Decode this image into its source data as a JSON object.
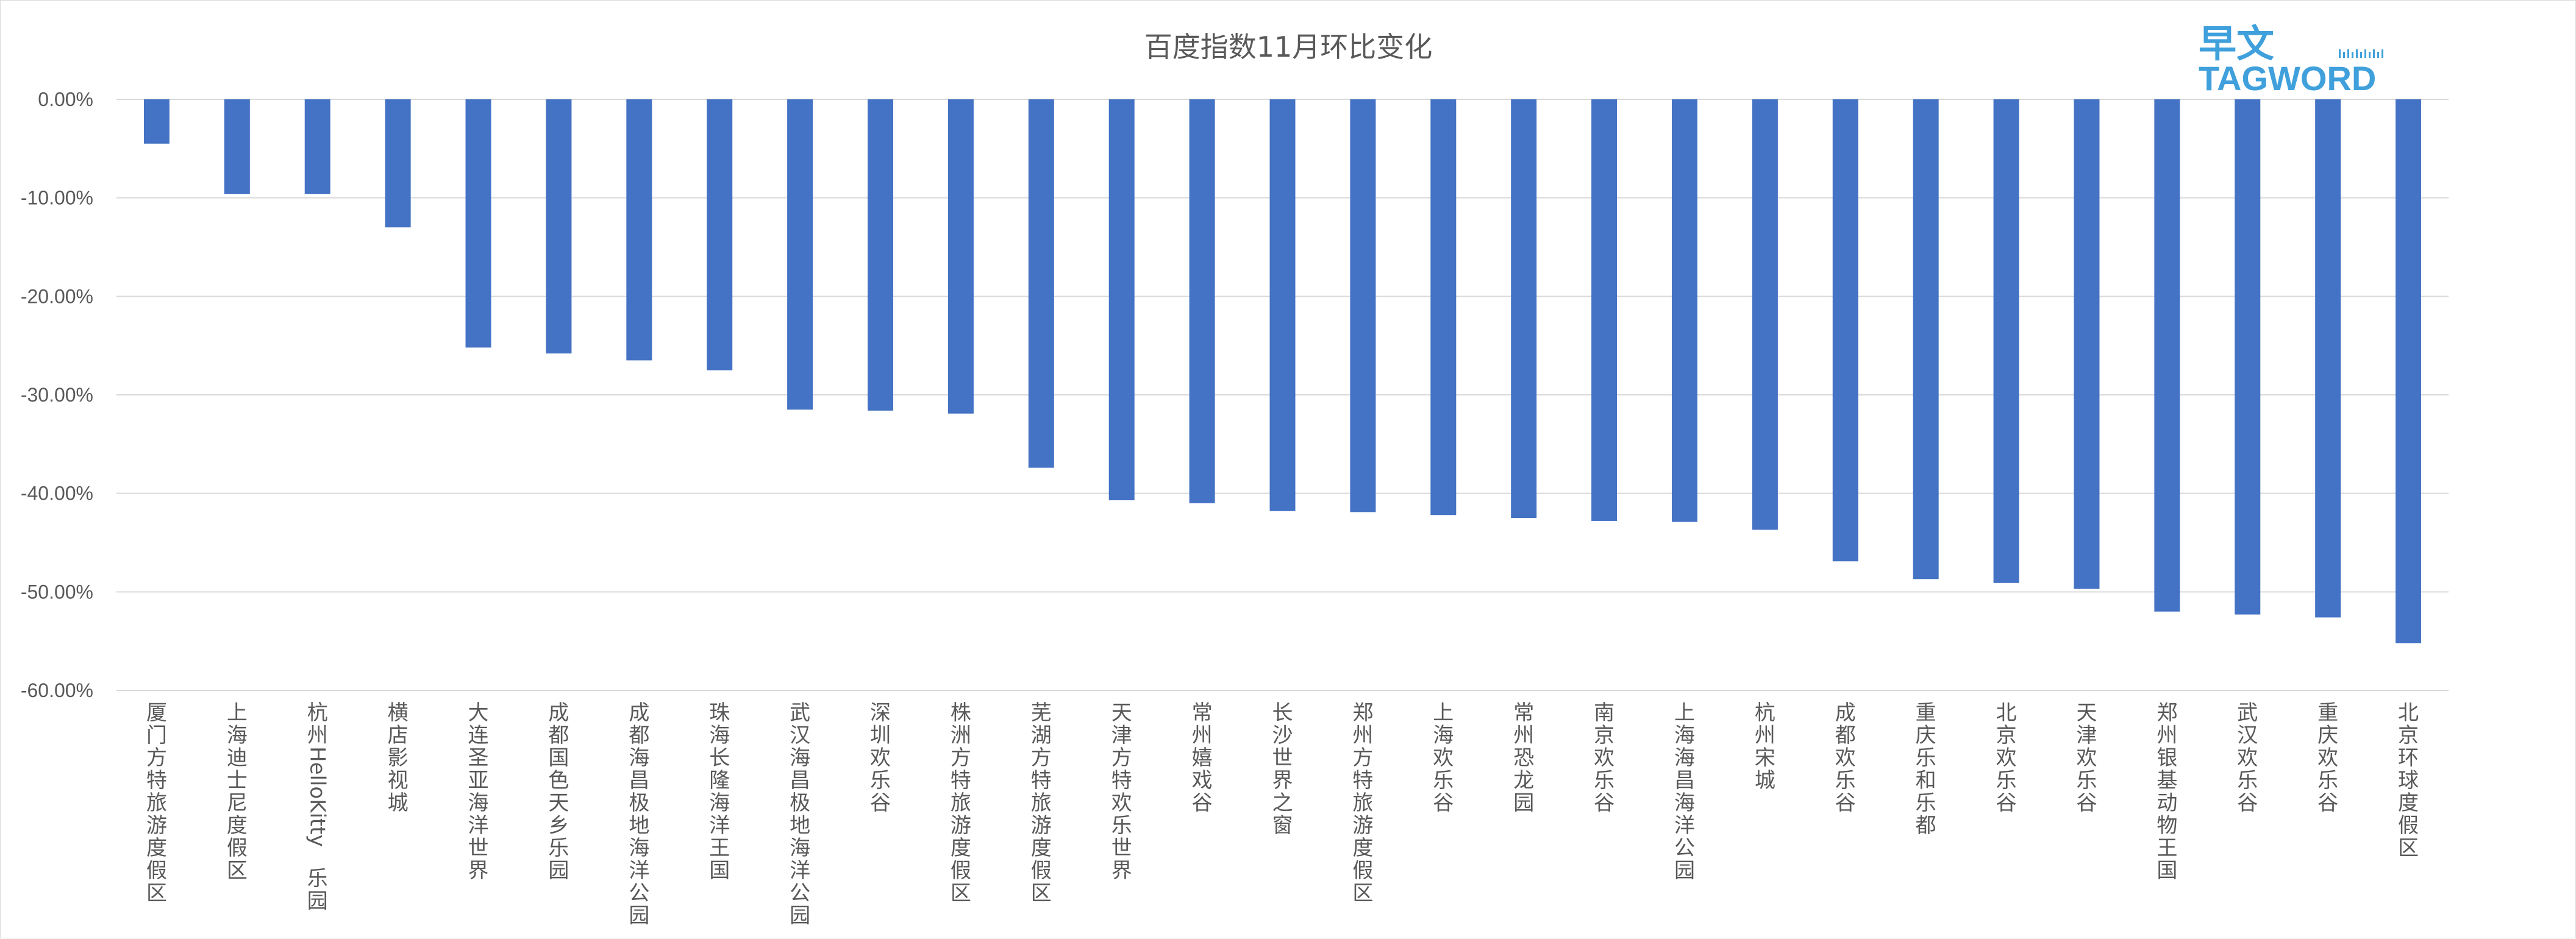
{
  "watermark": {
    "cn": "早文",
    "en": "TAGWORD"
  },
  "chart_data": {
    "type": "bar",
    "title": "百度指数11月环比变化",
    "xlabel": "",
    "ylabel": "",
    "ylim": [
      -60,
      0
    ],
    "y_ticks": [
      0,
      -10,
      -20,
      -30,
      -40,
      -50,
      -60
    ],
    "y_tick_labels": [
      "0.00%",
      "-10.00%",
      "-20.00%",
      "-30.00%",
      "-40.00%",
      "-50.00%",
      "-60.00%"
    ],
    "grid": true,
    "legend": "none",
    "bar_color": "#4472c4",
    "categories": [
      "厦门方特旅游度假区",
      "上海迪士尼度假区",
      "杭州HelloKitty乐园",
      "横店影视城",
      "大连圣亚海洋世界",
      "成都国色天乡乐园",
      "成都海昌极地海洋公园",
      "珠海长隆海洋王国",
      "武汉海昌极地海洋公园",
      "深圳欢乐谷",
      "株洲方特旅游度假区",
      "芜湖方特旅游度假区",
      "天津方特欢乐世界",
      "常州嬉戏谷",
      "长沙世界之窗",
      "郑州方特旅游度假区",
      "上海欢乐谷",
      "常州恐龙园",
      "南京欢乐谷",
      "上海海昌海洋公园",
      "杭州宋城",
      "成都欢乐谷",
      "重庆乐和乐都",
      "北京欢乐谷",
      "天津欢乐谷",
      "郑州银基动物王国",
      "武汉欢乐谷",
      "重庆欢乐谷",
      "北京环球度假区"
    ],
    "values": [
      -4.5,
      -9.6,
      -9.6,
      -13.0,
      -25.2,
      -25.8,
      -26.5,
      -27.5,
      -31.5,
      -31.6,
      -31.9,
      -37.4,
      -40.7,
      -41.0,
      -41.8,
      -41.9,
      -42.2,
      -42.5,
      -42.8,
      -42.9,
      -43.7,
      -46.9,
      -48.7,
      -49.1,
      -49.7,
      -52.0,
      -52.3,
      -52.6,
      -55.2
    ]
  }
}
